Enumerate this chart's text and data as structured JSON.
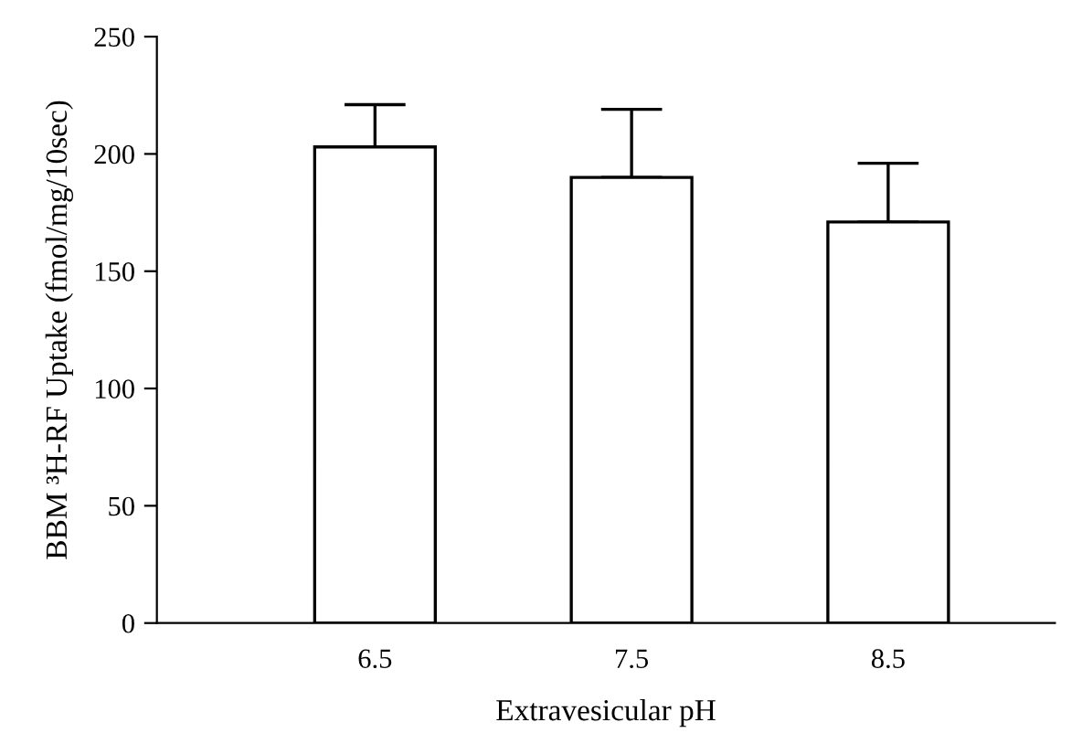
{
  "chart_data": {
    "type": "bar",
    "xlabel": "Extravesicular pH",
    "ylabel": "BBM ³H-RF Uptake (fmol/mg/10sec)",
    "categories": [
      "6.5",
      "7.5",
      "8.5"
    ],
    "values": [
      203,
      190,
      171
    ],
    "errors": [
      [
        203,
        221
      ],
      [
        190,
        219
      ],
      [
        171,
        196
      ]
    ],
    "color": "#ffffff",
    "ylim": [
      0,
      250
    ],
    "yticks": [
      0,
      50,
      100,
      150,
      200,
      250
    ],
    "grid": false
  }
}
